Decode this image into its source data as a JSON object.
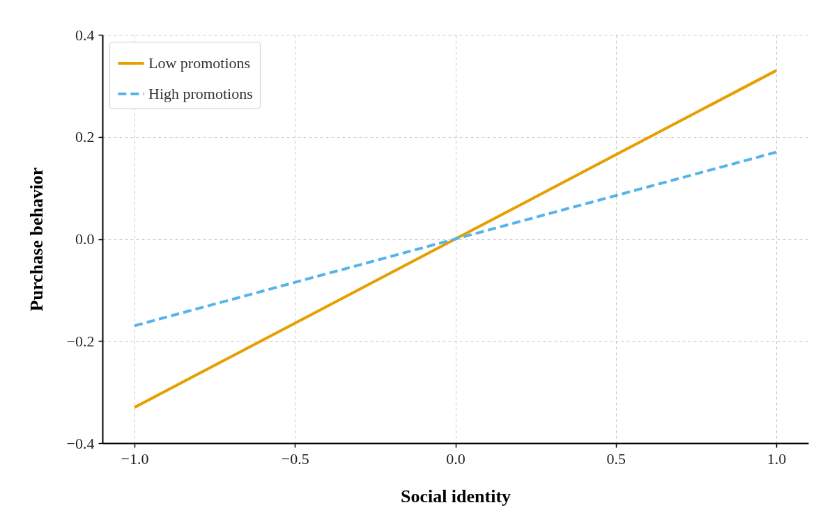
{
  "chart_data": {
    "type": "line",
    "xlabel": "Social identity",
    "ylabel": "Purchase behavior",
    "x": [
      -1.0,
      0.0,
      1.0
    ],
    "series": [
      {
        "name": "Low promotions",
        "color": "#e69f00",
        "line_style": "solid",
        "values": [
          -0.33,
          0.0,
          0.33
        ]
      },
      {
        "name": "High promotions",
        "color": "#56b4e9",
        "line_style": "dashed",
        "values": [
          -0.17,
          0.0,
          0.17
        ]
      }
    ],
    "xlim": [
      -1.1,
      1.1
    ],
    "ylim": [
      -0.4,
      0.4
    ],
    "xticks": [
      {
        "value": -1.0,
        "label": "−1.0"
      },
      {
        "value": -0.5,
        "label": "−0.5"
      },
      {
        "value": 0.0,
        "label": "0.0"
      },
      {
        "value": 0.5,
        "label": "0.5"
      },
      {
        "value": 1.0,
        "label": "1.0"
      }
    ],
    "yticks": [
      {
        "value": -0.4,
        "label": "−0.4"
      },
      {
        "value": -0.2,
        "label": "−0.2"
      },
      {
        "value": 0.0,
        "label": "0.0"
      },
      {
        "value": 0.2,
        "label": "0.2"
      },
      {
        "value": 0.4,
        "label": "0.4"
      }
    ],
    "grid": true,
    "legend": "top left",
    "marker": "none"
  }
}
